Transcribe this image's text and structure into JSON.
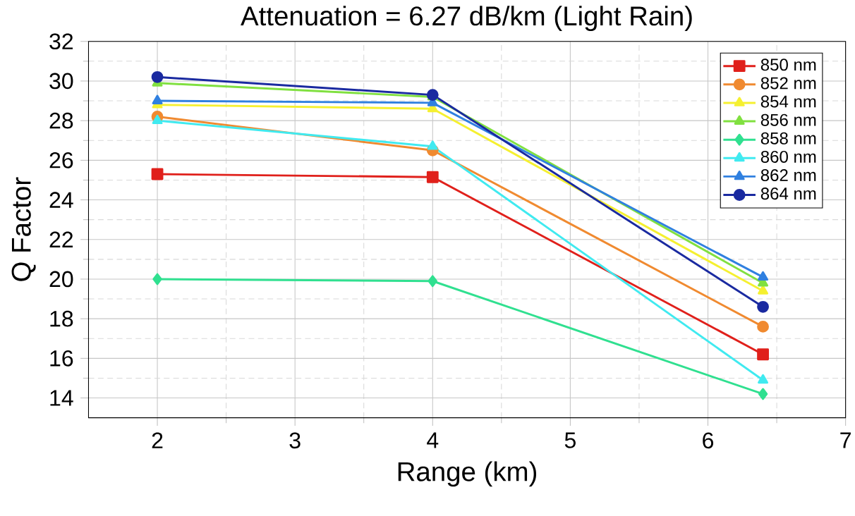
{
  "chart_data": {
    "type": "line",
    "title": "Attenuation = 6.27 dB/km (Light Rain)",
    "xlabel": "Range (km)",
    "ylabel": "Q Factor",
    "x": [
      2,
      4,
      6.4
    ],
    "series": [
      {
        "name": "850 nm",
        "color": "#e0201b",
        "marker": "square",
        "values": [
          25.3,
          25.15,
          16.2
        ]
      },
      {
        "name": "852 nm",
        "color": "#f08a30",
        "marker": "circle",
        "values": [
          28.2,
          26.5,
          17.6
        ]
      },
      {
        "name": "854 nm",
        "color": "#f5f030",
        "marker": "triangle",
        "values": [
          28.8,
          28.6,
          19.4
        ]
      },
      {
        "name": "856 nm",
        "color": "#80e040",
        "marker": "triangle",
        "values": [
          29.9,
          29.2,
          19.8
        ]
      },
      {
        "name": "858 nm",
        "color": "#30e090",
        "marker": "diamond",
        "values": [
          20.0,
          19.9,
          14.2
        ]
      },
      {
        "name": "860 nm",
        "color": "#40eaf0",
        "marker": "triangle",
        "values": [
          28.0,
          26.7,
          14.9
        ]
      },
      {
        "name": "862 nm",
        "color": "#3080e0",
        "marker": "triangle",
        "values": [
          29.0,
          28.9,
          20.1
        ]
      },
      {
        "name": "864 nm",
        "color": "#1a2aa0",
        "marker": "circle",
        "values": [
          30.2,
          29.3,
          18.6
        ]
      }
    ],
    "xlim": [
      1.5,
      7
    ],
    "ylim": [
      13,
      32
    ],
    "xticks": [
      2,
      3,
      4,
      5,
      6,
      7
    ],
    "yticks": [
      14,
      16,
      18,
      20,
      22,
      24,
      26,
      28,
      30,
      32
    ],
    "grid": true,
    "legend": "top right",
    "line_style": "solid"
  }
}
